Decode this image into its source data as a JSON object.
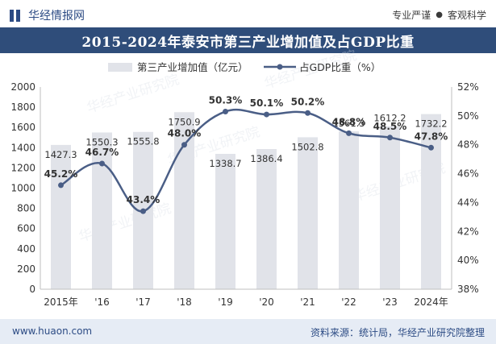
{
  "header": {
    "brand_name": "华经情报网",
    "slogan_1": "专业严谨",
    "slogan_2": "客观科学",
    "logo_icon": "huajing-logo-icon"
  },
  "colors": {
    "title_bg": "#2f4d7a",
    "bar": "#e1e3e9",
    "line": "#4a5e86",
    "footer_bg": "#e6ecf5",
    "accent": "#2c4b84"
  },
  "footer": {
    "website": "www.huaon.com",
    "source": "资料来源：统计局，华经产业研究院整理"
  },
  "chart_data": {
    "type": "bar+line",
    "title": "2015-2024年泰安市第三产业增加值及占GDP比重",
    "categories": [
      "2015年",
      "'16",
      "'17",
      "'18",
      "'19",
      "'20",
      "'21",
      "'22",
      "'23",
      "2024年"
    ],
    "series": [
      {
        "name": "第三产业增加值（亿元）",
        "type": "bar",
        "axis": "left",
        "values": [
          1427.3,
          1550.3,
          1555.8,
          1750.9,
          1338.7,
          1386.4,
          1502.8,
          1561.3,
          1612.2,
          1732.2
        ],
        "labels": [
          "1427.3",
          "1550.3",
          "1555.8",
          "1750.9",
          "1338.7",
          "1386.4",
          "1502.8",
          "1561.3",
          "1612.2",
          "1732.2"
        ]
      },
      {
        "name": "占GDP比重（%）",
        "type": "line",
        "axis": "right",
        "values": [
          45.2,
          46.7,
          43.4,
          48.0,
          50.3,
          50.1,
          50.2,
          48.8,
          48.5,
          47.8
        ],
        "labels": [
          "45.2%",
          "46.7%",
          "43.4%",
          "48.0%",
          "50.3%",
          "50.1%",
          "50.2%",
          "48.8%",
          "48.5%",
          "47.8%"
        ]
      }
    ],
    "y_left": {
      "min": 0,
      "max": 2000,
      "step": 200,
      "ticks": [
        "0",
        "200",
        "400",
        "600",
        "800",
        "1000",
        "1200",
        "1400",
        "1600",
        "1800",
        "2000"
      ]
    },
    "y_right": {
      "min": 38,
      "max": 52,
      "step": 2,
      "ticks": [
        "38%",
        "40%",
        "42%",
        "44%",
        "46%",
        "48%",
        "50%",
        "52%"
      ]
    },
    "legend_position": "top-center",
    "grid": false
  }
}
